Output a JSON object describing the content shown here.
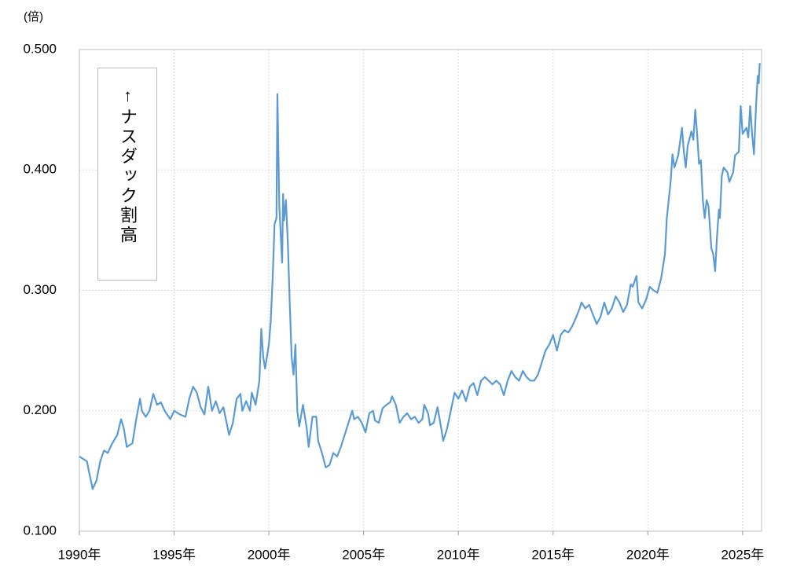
{
  "chart_data": {
    "type": "line",
    "unit_label": "(倍)",
    "annotation": "↑ナスダック割高",
    "color": "#5b9bd5",
    "grid": true,
    "xlim": [
      1990,
      2026
    ],
    "ylim": [
      0.1,
      0.5
    ],
    "xticks": [
      {
        "value": 1990,
        "label": "1990年"
      },
      {
        "value": 1995,
        "label": "1995年"
      },
      {
        "value": 2000,
        "label": "2000年"
      },
      {
        "value": 2005,
        "label": "2005年"
      },
      {
        "value": 2010,
        "label": "2010年"
      },
      {
        "value": 2015,
        "label": "2015年"
      },
      {
        "value": 2020,
        "label": "2020年"
      },
      {
        "value": 2025,
        "label": "2025年"
      }
    ],
    "yticks": [
      {
        "value": 0.1,
        "label": "0.100"
      },
      {
        "value": 0.2,
        "label": "0.200"
      },
      {
        "value": 0.3,
        "label": "0.300"
      },
      {
        "value": 0.4,
        "label": "0.400"
      },
      {
        "value": 0.5,
        "label": "0.500"
      }
    ],
    "x": [
      1990.0,
      1990.2,
      1990.4,
      1990.5,
      1990.7,
      1990.9,
      1991.1,
      1991.3,
      1991.5,
      1991.7,
      1992.0,
      1992.2,
      1992.35,
      1992.5,
      1992.8,
      1993.0,
      1993.2,
      1993.3,
      1993.5,
      1993.7,
      1993.9,
      1994.1,
      1994.3,
      1994.5,
      1994.8,
      1995.0,
      1995.3,
      1995.6,
      1995.8,
      1996.0,
      1996.2,
      1996.4,
      1996.6,
      1996.8,
      1997.0,
      1997.2,
      1997.4,
      1997.6,
      1997.9,
      1998.1,
      1998.3,
      1998.5,
      1998.6,
      1998.8,
      1999.0,
      1999.1,
      1999.3,
      1999.5,
      1999.6,
      1999.7,
      1999.8,
      1999.9,
      2000.0,
      2000.1,
      2000.2,
      2000.3,
      2000.4,
      2000.45,
      2000.55,
      2000.7,
      2000.75,
      2000.8,
      2000.9,
      2001.0,
      2001.1,
      2001.2,
      2001.3,
      2001.4,
      2001.5,
      2001.6,
      2001.8,
      2002.0,
      2002.1,
      2002.3,
      2002.5,
      2002.6,
      2002.8,
      2003.0,
      2003.2,
      2003.4,
      2003.6,
      2003.8,
      2004.0,
      2004.2,
      2004.4,
      2004.5,
      2004.7,
      2004.9,
      2005.1,
      2005.3,
      2005.5,
      2005.6,
      2005.8,
      2006.0,
      2006.2,
      2006.4,
      2006.5,
      2006.7,
      2006.9,
      2007.1,
      2007.3,
      2007.5,
      2007.7,
      2007.9,
      2008.1,
      2008.2,
      2008.4,
      2008.5,
      2008.7,
      2008.9,
      2009.1,
      2009.2,
      2009.4,
      2009.6,
      2009.8,
      2010.0,
      2010.2,
      2010.4,
      2010.6,
      2010.8,
      2011.0,
      2011.2,
      2011.4,
      2011.6,
      2011.8,
      2012.0,
      2012.2,
      2012.4,
      2012.6,
      2012.8,
      2013.0,
      2013.2,
      2013.4,
      2013.6,
      2013.8,
      2014.0,
      2014.2,
      2014.4,
      2014.6,
      2014.8,
      2015.0,
      2015.2,
      2015.4,
      2015.6,
      2015.8,
      2016.0,
      2016.2,
      2016.4,
      2016.5,
      2016.7,
      2016.9,
      2017.1,
      2017.3,
      2017.5,
      2017.7,
      2017.9,
      2018.1,
      2018.3,
      2018.5,
      2018.7,
      2018.9,
      2019.1,
      2019.2,
      2019.4,
      2019.5,
      2019.7,
      2019.9,
      2020.1,
      2020.3,
      2020.5,
      2020.7,
      2020.9,
      2021.0,
      2021.2,
      2021.3,
      2021.4,
      2021.6,
      2021.8,
      2021.9,
      2022.0,
      2022.1,
      2022.3,
      2022.4,
      2022.5,
      2022.6,
      2022.7,
      2022.8,
      2022.9,
      2023.0,
      2023.1,
      2023.2,
      2023.35,
      2023.45,
      2023.55,
      2023.65,
      2023.75,
      2023.8,
      2023.9,
      2024.0,
      2024.2,
      2024.3,
      2024.5,
      2024.6,
      2024.8,
      2024.9,
      2025.0,
      2025.2,
      2025.3,
      2025.4,
      2025.5,
      2025.6,
      2025.7,
      2025.75,
      2025.8,
      2025.85,
      2025.9,
      2025.95
    ],
    "values": [
      0.162,
      0.16,
      0.158,
      0.15,
      0.135,
      0.142,
      0.158,
      0.167,
      0.165,
      0.172,
      0.18,
      0.193,
      0.185,
      0.17,
      0.173,
      0.193,
      0.21,
      0.2,
      0.195,
      0.2,
      0.214,
      0.205,
      0.207,
      0.2,
      0.193,
      0.2,
      0.197,
      0.195,
      0.21,
      0.22,
      0.215,
      0.203,
      0.197,
      0.22,
      0.2,
      0.208,
      0.198,
      0.203,
      0.18,
      0.19,
      0.21,
      0.214,
      0.2,
      0.208,
      0.2,
      0.215,
      0.205,
      0.225,
      0.268,
      0.245,
      0.235,
      0.245,
      0.255,
      0.275,
      0.31,
      0.355,
      0.36,
      0.463,
      0.37,
      0.323,
      0.38,
      0.358,
      0.375,
      0.34,
      0.29,
      0.245,
      0.23,
      0.255,
      0.2,
      0.187,
      0.205,
      0.185,
      0.17,
      0.195,
      0.195,
      0.175,
      0.165,
      0.153,
      0.155,
      0.165,
      0.162,
      0.17,
      0.18,
      0.19,
      0.2,
      0.193,
      0.195,
      0.19,
      0.182,
      0.198,
      0.2,
      0.192,
      0.19,
      0.202,
      0.205,
      0.207,
      0.212,
      0.205,
      0.19,
      0.195,
      0.198,
      0.193,
      0.195,
      0.19,
      0.193,
      0.205,
      0.198,
      0.188,
      0.19,
      0.203,
      0.185,
      0.175,
      0.185,
      0.2,
      0.215,
      0.21,
      0.217,
      0.208,
      0.22,
      0.223,
      0.213,
      0.225,
      0.228,
      0.225,
      0.222,
      0.225,
      0.222,
      0.213,
      0.225,
      0.233,
      0.228,
      0.225,
      0.233,
      0.228,
      0.225,
      0.225,
      0.23,
      0.24,
      0.25,
      0.255,
      0.263,
      0.25,
      0.263,
      0.267,
      0.265,
      0.27,
      0.277,
      0.285,
      0.29,
      0.285,
      0.288,
      0.28,
      0.272,
      0.278,
      0.29,
      0.28,
      0.285,
      0.295,
      0.29,
      0.282,
      0.288,
      0.305,
      0.303,
      0.312,
      0.29,
      0.285,
      0.292,
      0.303,
      0.3,
      0.298,
      0.31,
      0.33,
      0.36,
      0.39,
      0.413,
      0.402,
      0.412,
      0.435,
      0.415,
      0.402,
      0.42,
      0.432,
      0.425,
      0.45,
      0.43,
      0.405,
      0.408,
      0.375,
      0.36,
      0.375,
      0.37,
      0.335,
      0.33,
      0.316,
      0.345,
      0.367,
      0.36,
      0.395,
      0.402,
      0.398,
      0.39,
      0.398,
      0.412,
      0.415,
      0.453,
      0.43,
      0.435,
      0.427,
      0.453,
      0.43,
      0.413,
      0.45,
      0.465,
      0.478,
      0.472,
      0.488,
      0.488
    ]
  }
}
